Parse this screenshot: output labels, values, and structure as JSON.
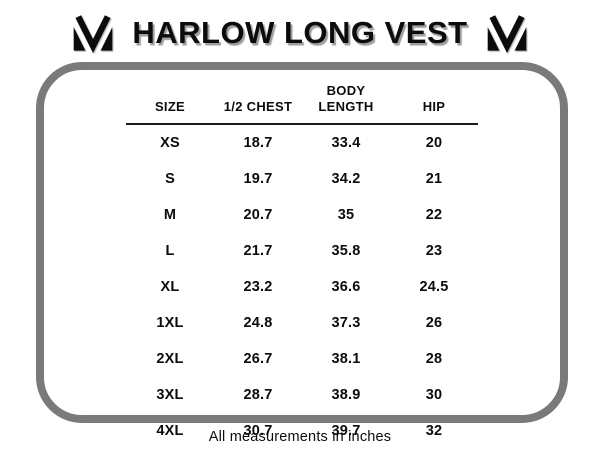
{
  "header": {
    "title": "HARLOW LONG VEST",
    "logo_icon": "m-monogram-logo"
  },
  "chart_data": {
    "type": "table",
    "title": "HARLOW LONG VEST",
    "columns": [
      "SIZE",
      "1/2 CHEST",
      "BODY LENGTH",
      "HIP"
    ],
    "rows": [
      [
        "XS",
        "18.7",
        "33.4",
        "20"
      ],
      [
        "S",
        "19.7",
        "34.2",
        "21"
      ],
      [
        "M",
        "20.7",
        "35",
        "22"
      ],
      [
        "L",
        "21.7",
        "35.8",
        "23"
      ],
      [
        "XL",
        "23.2",
        "36.6",
        "24.5"
      ],
      [
        "1XL",
        "24.8",
        "37.3",
        "26"
      ],
      [
        "2XL",
        "26.7",
        "38.1",
        "28"
      ],
      [
        "3XL",
        "28.7",
        "38.9",
        "30"
      ],
      [
        "4XL",
        "30.7",
        "39.7",
        "32"
      ]
    ],
    "note": "All measurements in inches"
  },
  "display": {
    "header_lines": [
      "SIZE",
      "1/2 CHEST",
      "BODY\nLENGTH",
      "HIP"
    ]
  },
  "footer": {
    "note": "All measurements in inches"
  },
  "colors": {
    "panel_border": "#7a7a7a",
    "text": "#0c0c0c",
    "title_shadow": "#9e9e9e"
  }
}
